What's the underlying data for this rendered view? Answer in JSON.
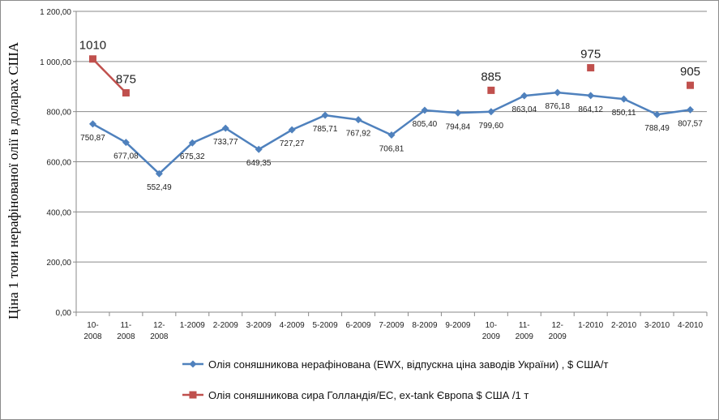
{
  "chart_data": {
    "type": "line",
    "ylabel": "Ціна 1 тони нерафінованої олії в доларах США",
    "ylim": [
      0,
      1200
    ],
    "yticks": [
      0,
      200,
      400,
      600,
      800,
      1000,
      1200
    ],
    "ytick_labels": [
      "0,00",
      "200,00",
      "400,00",
      "600,00",
      "800,00",
      "1 000,00",
      "1 200,00"
    ],
    "categories": [
      [
        "10-",
        "2008"
      ],
      [
        "11-",
        "2008"
      ],
      [
        "12-",
        "2008"
      ],
      [
        "1-2009"
      ],
      [
        "2-2009"
      ],
      [
        "3-2009"
      ],
      [
        "4-2009"
      ],
      [
        "5-2009"
      ],
      [
        "6-2009"
      ],
      [
        "7-2009"
      ],
      [
        "8-2009"
      ],
      [
        "9-2009"
      ],
      [
        "10-",
        "2009"
      ],
      [
        "11-",
        "2009"
      ],
      [
        "12-",
        "2009"
      ],
      [
        "1-2010"
      ],
      [
        "2-2010"
      ],
      [
        "3-2010"
      ],
      [
        "4-2010"
      ]
    ],
    "grid": "horizontal",
    "legend_position": "bottom",
    "series": [
      {
        "name": "Олія соняшникова нерафінована (EWX, відпускна ціна заводів України) , $ США/т",
        "color": "#4f81bd",
        "marker": "diamond",
        "values": [
          750.87,
          677.08,
          552.49,
          675.32,
          733.77,
          649.35,
          727.27,
          785.71,
          767.92,
          706.81,
          805.4,
          794.84,
          799.6,
          863.04,
          876.18,
          864.12,
          850.11,
          788.49,
          807.57
        ],
        "labels": [
          "750,87",
          "677,08",
          "552,49",
          "675,32",
          "733,77",
          "649,35",
          "727,27",
          "785,71",
          "767,92",
          "706,81",
          "805,40",
          "794,84",
          "799,60",
          "863,04",
          "876,18",
          "864,12",
          "850,11",
          "788,49",
          "807,57"
        ]
      },
      {
        "name": "Олія соняшникова сира Голландія/ЕС, ex-tank Європа $ США /1 т",
        "color": "#c0504d",
        "marker": "square",
        "values": [
          1010,
          875,
          null,
          null,
          null,
          null,
          null,
          null,
          null,
          null,
          null,
          null,
          885,
          null,
          null,
          975,
          null,
          null,
          905
        ],
        "labels": [
          "1010",
          "875",
          null,
          null,
          null,
          null,
          null,
          null,
          null,
          null,
          null,
          null,
          "885",
          null,
          null,
          "975",
          null,
          null,
          "905"
        ]
      }
    ]
  }
}
